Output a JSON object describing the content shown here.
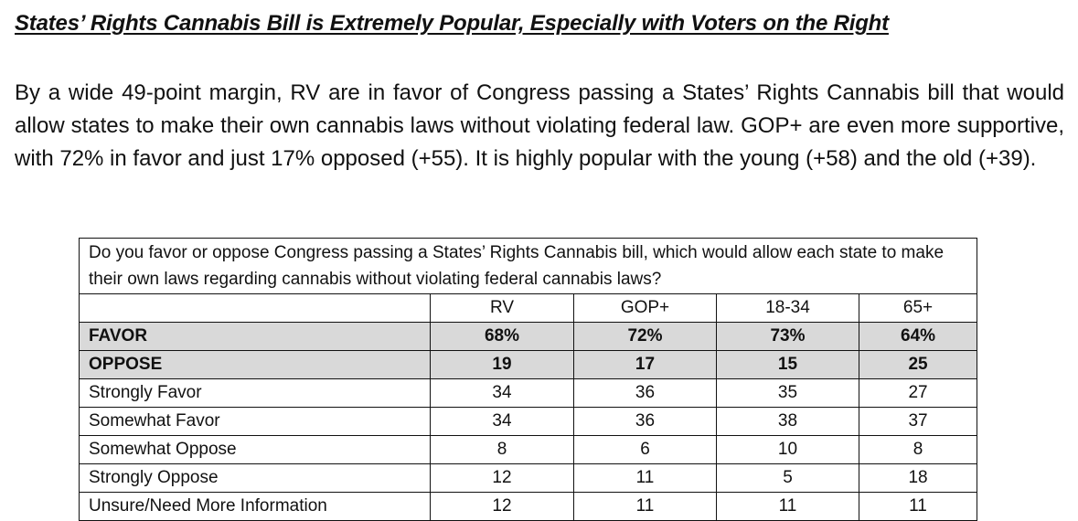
{
  "heading": "States’ Rights Cannabis Bill is Extremely Popular, Especially with Voters on the Right",
  "intro": "By a wide 49-point margin, RV are in favor of Congress passing a States’ Rights Cannabis bill that would allow states to make their own cannabis laws without violating federal law. GOP+ are even more supportive, with 72% in favor and just 17% opposed (+55). It is highly popular with the young (+58) and the old (+39).",
  "table": {
    "question": "Do you favor or oppose Congress passing a States’ Rights Cannabis bill, which would allow each state to make their own laws regarding cannabis without violating federal cannabis laws?",
    "columns": [
      "RV",
      "GOP+",
      "18-34",
      "65+"
    ],
    "rows": [
      {
        "label": "FAVOR",
        "values": [
          "68%",
          "72%",
          "73%",
          "64%"
        ]
      },
      {
        "label": "OPPOSE",
        "values": [
          "19",
          "17",
          "15",
          "25"
        ]
      },
      {
        "label": "Strongly Favor",
        "values": [
          "34",
          "36",
          "35",
          "27"
        ]
      },
      {
        "label": "Somewhat Favor",
        "values": [
          "34",
          "36",
          "38",
          "37"
        ]
      },
      {
        "label": "Somewhat Oppose",
        "values": [
          "8",
          "6",
          "10",
          "8"
        ]
      },
      {
        "label": "Strongly Oppose",
        "values": [
          "12",
          "11",
          "5",
          "18"
        ]
      },
      {
        "label": "Unsure/Need More Information",
        "values": [
          "12",
          "11",
          "11",
          "11"
        ]
      }
    ]
  }
}
